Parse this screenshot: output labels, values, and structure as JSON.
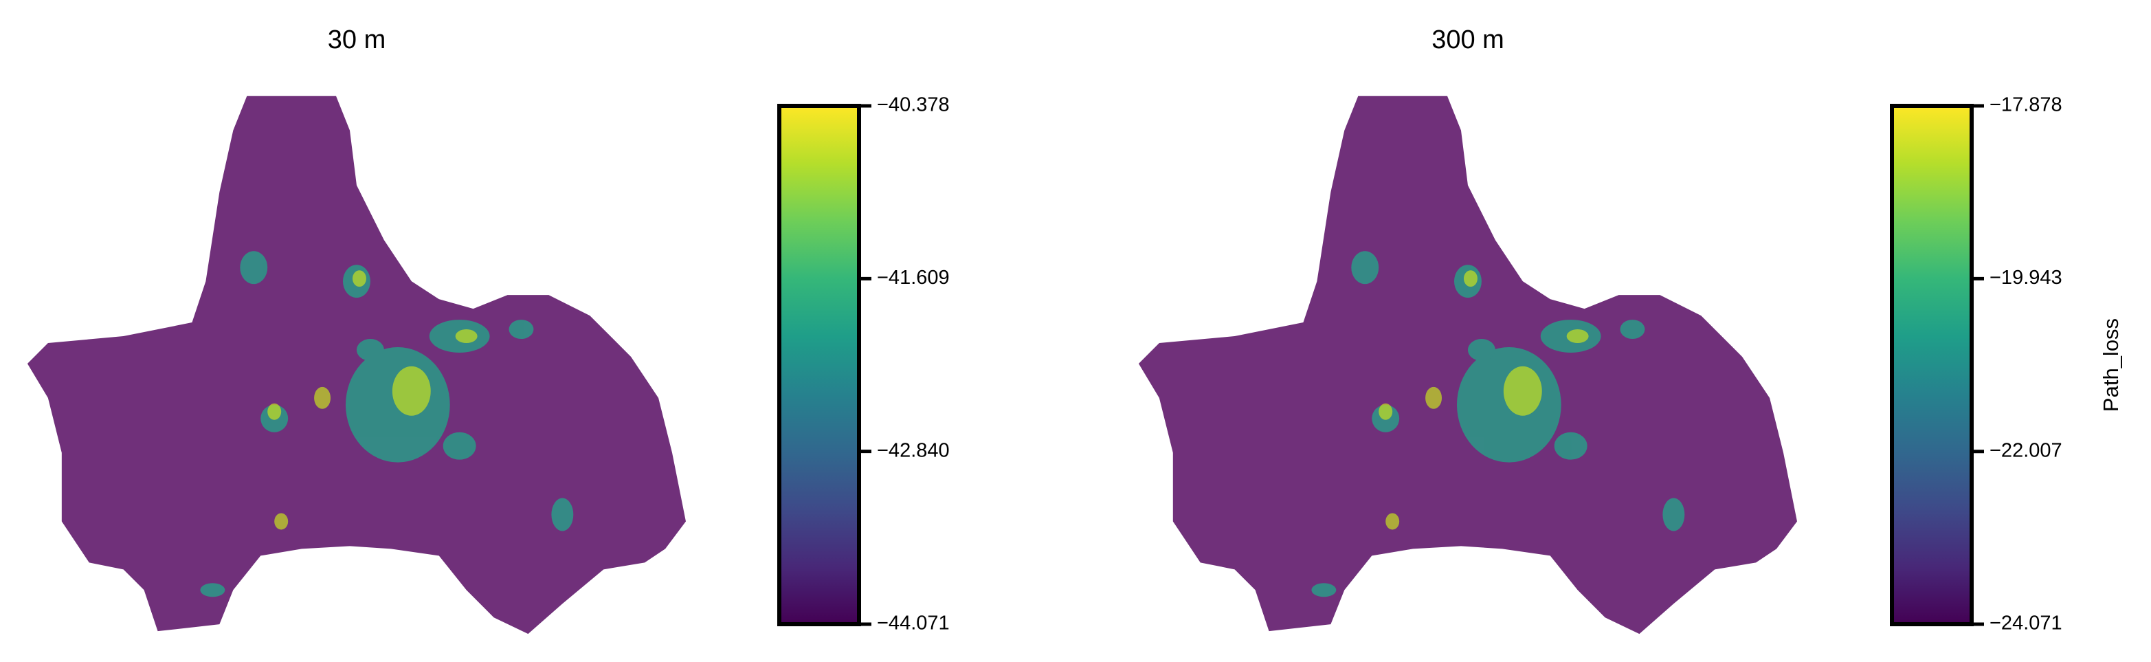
{
  "chart_data": [
    {
      "type": "map",
      "title": "30 m",
      "colormap": "viridis",
      "ylim": [
        -44.071,
        -40.378
      ],
      "yticks": [
        {
          "value": -44.071,
          "label": "−44.071"
        },
        {
          "value": -42.84,
          "label": "−42.840"
        },
        {
          "value": -41.609,
          "label": "−41.609"
        },
        {
          "value": -40.378,
          "label": "−40.378"
        }
      ]
    },
    {
      "type": "map",
      "title": "300 m",
      "colormap": "viridis",
      "ylabel": "Path_loss",
      "ylim": [
        -24.071,
        -17.878
      ],
      "yticks": [
        {
          "value": -24.071,
          "label": "−24.071"
        },
        {
          "value": -22.007,
          "label": "−22.007"
        },
        {
          "value": -19.943,
          "label": "−19.943"
        },
        {
          "value": -17.878,
          "label": "−17.878"
        }
      ]
    }
  ]
}
